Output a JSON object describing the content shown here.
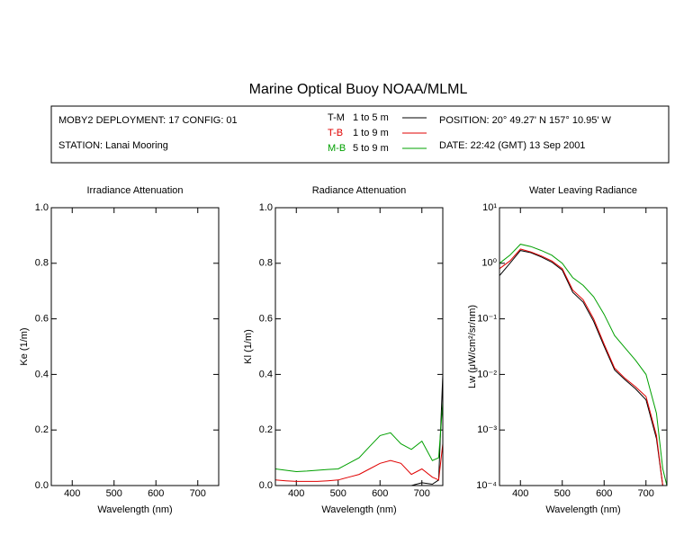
{
  "title": "Marine Optical Buoy NOAA/MLML",
  "info": {
    "deployment": "MOBY2 DEPLOYMENT: 17 CONFIG: 01",
    "station": "STATION: Lanai Mooring",
    "position": "POSITION: 20° 49.27' N   157° 10.95' W",
    "date": "DATE: 22:42 (GMT) 13 Sep 2001"
  },
  "chart_data": [
    {
      "type": "line",
      "title": "Irradiance Attenuation",
      "x_label": "Wavelength (nm)",
      "y_label": "Ke  (1/m)",
      "xlim": [
        350,
        750
      ],
      "xticks": [
        400,
        500,
        600,
        700
      ],
      "ylim": [
        0,
        1
      ],
      "yticks": [
        {
          "value": 0,
          "label": "0.0"
        },
        {
          "value": 0.2,
          "label": "0.2"
        },
        {
          "value": 0.4,
          "label": "0.4"
        },
        {
          "value": 0.6,
          "label": "0.6"
        },
        {
          "value": 0.8,
          "label": "0.8"
        },
        {
          "value": 1,
          "label": "1.0"
        }
      ],
      "series": []
    },
    {
      "type": "line",
      "title": "Radiance Attenuation",
      "x_label": "Wavelength (nm)",
      "y_label": "Kl  (1/m)",
      "xlim": [
        350,
        750
      ],
      "xticks": [
        400,
        500,
        600,
        700
      ],
      "ylim": [
        0,
        1
      ],
      "yticks": [
        {
          "value": 0,
          "label": "0.0"
        },
        {
          "value": 0.2,
          "label": "0.2"
        },
        {
          "value": 0.4,
          "label": "0.4"
        },
        {
          "value": 0.6,
          "label": "0.6"
        },
        {
          "value": 0.8,
          "label": "0.8"
        },
        {
          "value": 1,
          "label": "1.0"
        }
      ],
      "x": [
        350,
        375,
        400,
        425,
        450,
        475,
        500,
        525,
        550,
        575,
        600,
        625,
        650,
        675,
        700,
        725,
        740,
        750
      ],
      "series": [
        {
          "name": "T-M",
          "depth": "1 to 5  m",
          "color": "#000000",
          "values": [
            0,
            0,
            0,
            0,
            0,
            0,
            0,
            0,
            0,
            0,
            0,
            0,
            0,
            0,
            0.01,
            0.005,
            0.02,
            0.4
          ]
        },
        {
          "name": "T-B",
          "depth": "1 to 9  m",
          "color": "#e00000",
          "values": [
            0.02,
            0.017,
            0.015,
            0.015,
            0.015,
            0.017,
            0.02,
            0.03,
            0.04,
            0.06,
            0.08,
            0.09,
            0.08,
            0.04,
            0.06,
            0.03,
            0.02,
            0.15
          ]
        },
        {
          "name": "M-B",
          "depth": "5 to 9  m",
          "color": "#00a000",
          "values": [
            0.06,
            0.055,
            0.05,
            0.052,
            0.055,
            0.058,
            0.06,
            0.08,
            0.1,
            0.14,
            0.18,
            0.19,
            0.15,
            0.13,
            0.16,
            0.09,
            0.1,
            0.3
          ]
        }
      ]
    },
    {
      "type": "line",
      "title": "Water Leaving Radiance",
      "x_label": "Wavelength (nm)",
      "y_label": "Lw  (μW/cm²/sr/nm)",
      "xlim": [
        350,
        750
      ],
      "xticks": [
        400,
        500,
        600,
        700
      ],
      "log_y": true,
      "ylim": [
        0.0001,
        10
      ],
      "yticks": [
        {
          "value": 10,
          "label": "10¹"
        },
        {
          "value": 1,
          "label": "10⁰"
        },
        {
          "value": 0.1,
          "label": "10⁻¹"
        },
        {
          "value": 0.01,
          "label": "10⁻²"
        },
        {
          "value": 0.001,
          "label": "10⁻³"
        },
        {
          "value": 0.0001,
          "label": "10⁻⁴"
        }
      ],
      "x": [
        350,
        375,
        400,
        425,
        450,
        475,
        500,
        525,
        550,
        575,
        600,
        625,
        650,
        675,
        700,
        725,
        740,
        750
      ],
      "series": [
        {
          "color": "#000000",
          "values": [
            0.6,
            1.0,
            1.7,
            1.55,
            1.3,
            1.05,
            0.75,
            0.3,
            0.2,
            0.09,
            0.032,
            0.012,
            0.008,
            0.0055,
            0.0035,
            0.0007,
            0.0001,
            null
          ]
        },
        {
          "color": "#e00000",
          "values": [
            0.8,
            1.1,
            1.8,
            1.6,
            1.35,
            1.1,
            0.8,
            0.33,
            0.22,
            0.1,
            0.035,
            0.013,
            0.0085,
            0.006,
            0.004,
            0.0008,
            0.0001,
            null
          ]
        },
        {
          "color": "#00a000",
          "values": [
            1.0,
            1.4,
            2.2,
            2.0,
            1.7,
            1.4,
            1.0,
            0.55,
            0.4,
            0.25,
            0.12,
            0.05,
            0.03,
            0.018,
            0.01,
            0.002,
            0.0002,
            0.0001
          ]
        }
      ]
    }
  ]
}
